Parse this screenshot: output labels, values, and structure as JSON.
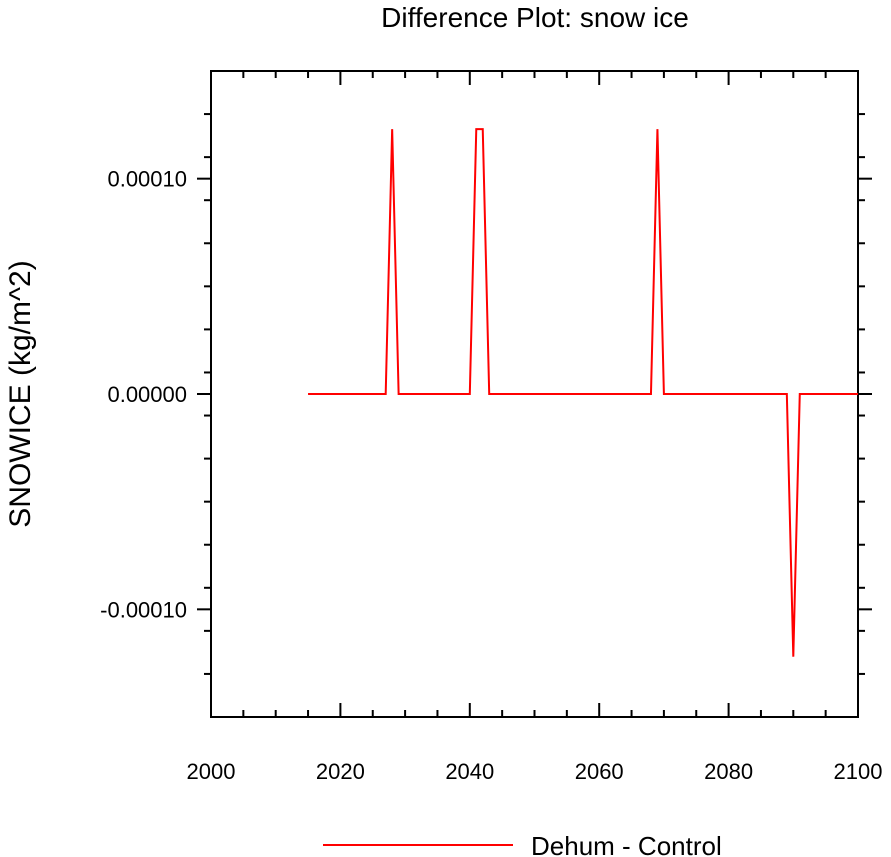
{
  "chart_data": {
    "type": "line",
    "title": "Difference Plot: snow ice",
    "ylabel": "SNOWICE  (kg/m^2)",
    "xlabel": "",
    "xlim": [
      2000,
      2100
    ],
    "ylim": [
      -0.00015,
      0.00015
    ],
    "x_major_ticks": [
      2000,
      2020,
      2040,
      2060,
      2080,
      2100
    ],
    "x_tick_labels": [
      "2000",
      "2020",
      "2040",
      "2060",
      "2080",
      "2100"
    ],
    "x_minor_step": 5,
    "y_major_ticks": [
      -0.0001,
      0,
      0.0001
    ],
    "y_tick_labels": [
      "-0.00010",
      "0.00000",
      "0.00010"
    ],
    "y_minor_step": 2e-05,
    "grid": false,
    "legend_position": "bottom-center",
    "series": [
      {
        "name": "Dehum - Control",
        "color": "#ff0000",
        "x": [
          2015,
          2027,
          2028,
          2029,
          2040,
          2041,
          2042,
          2043,
          2068,
          2069,
          2070,
          2089,
          2090,
          2091,
          2100
        ],
        "y": [
          0,
          0,
          0.000123,
          0,
          0,
          0.000123,
          0.000123,
          0,
          0,
          0.000123,
          0,
          0,
          -0.000122,
          0,
          0
        ]
      }
    ]
  }
}
